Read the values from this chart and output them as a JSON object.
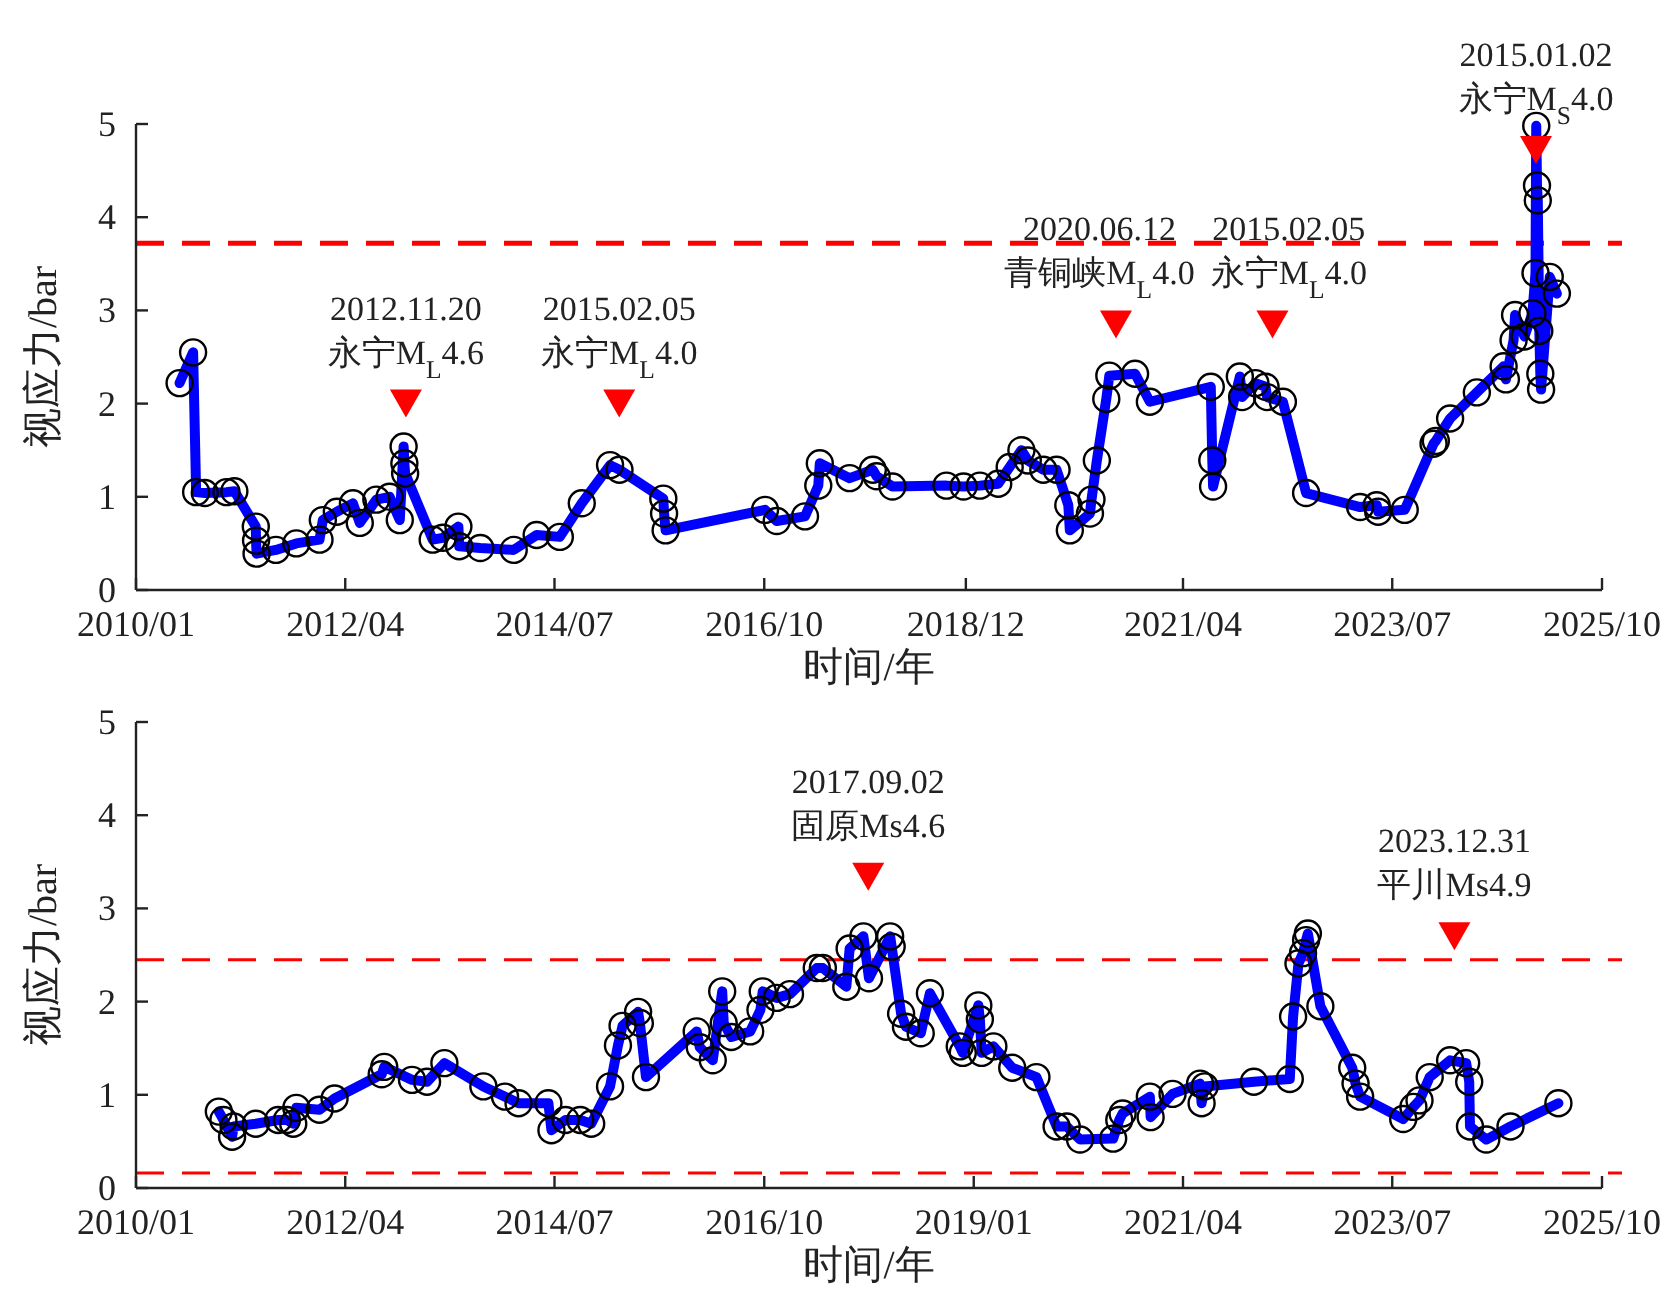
{
  "chart_data": [
    {
      "type": "line",
      "xlabel": "时间/年",
      "ylabel": "视应力/bar",
      "xlim": [
        "2010-01",
        "2025-10"
      ],
      "ylim": [
        0,
        5
      ],
      "yticks": [
        0,
        1,
        2,
        3,
        4,
        5
      ],
      "xticks": [
        {
          "value": "2010-01",
          "label": "2010/01"
        },
        {
          "value": "2012-04",
          "label": "2012/04"
        },
        {
          "value": "2014-07",
          "label": "2014/07"
        },
        {
          "value": "2016-10",
          "label": "2016/10"
        },
        {
          "value": "2018-12",
          "label": "2018/12"
        },
        {
          "value": "2021-04",
          "label": "2021/04"
        },
        {
          "value": "2023-07",
          "label": "2023/07"
        },
        {
          "value": "2025-10",
          "label": "2025/10"
        }
      ],
      "ref_lines": [
        {
          "axis": "y",
          "value": 3.72,
          "color": "#ff0000",
          "line_style": "dashed"
        }
      ],
      "annotations": [
        {
          "text": "2012.11.20\n永宁M$_{L}$4.6",
          "x": "2012-11-25",
          "y": 2.0
        },
        {
          "text": "2015.02.05\n永宁M$_{L}$4.0",
          "x": "2015-03-12",
          "y": 2.0
        },
        {
          "text": "2020.06.12\n青铜峡M$_{L}$4.0",
          "x": "2020-07-12",
          "y": 2.85
        },
        {
          "text": "2015.02.05\n永宁M$_{L}$4.0",
          "x": "2022-03-18",
          "y": 2.85
        },
        {
          "text": "2015.01.02\n永宁M$_{S}$4.0",
          "x": "2025-01-15",
          "y": 4.72
        }
      ],
      "series": [
        {
          "type": "line",
          "color": "#0000ff",
          "marker": "circle",
          "line_style": "solid",
          "x": [
            "2010-06-21",
            "2010-08-13",
            "2010-08-25",
            "2010-09-28",
            "2010-12-22",
            "2011-01-22",
            "2011-04-16",
            "2011-04-17",
            "2011-04-19",
            "2011-07-04",
            "2011-09-22",
            "2011-12-22",
            "2012-01-04",
            "2012-02-28",
            "2012-05-01",
            "2012-05-28",
            "2012-08-01",
            "2012-09-22",
            "2012-11-01",
            "2012-11-16",
            "2012-11-19",
            "2012-11-22",
            "2013-03-10",
            "2013-04-19",
            "2013-06-19",
            "2013-06-22",
            "2013-09-13",
            "2014-01-22",
            "2014-04-22",
            "2014-07-22",
            "2014-10-16",
            "2015-02-04",
            "2015-03-13",
            "2015-09-01",
            "2015-09-04",
            "2015-09-10",
            "2016-10-04",
            "2016-11-19",
            "2017-03-10",
            "2017-05-01",
            "2017-05-07",
            "2017-09-01",
            "2017-12-01",
            "2017-12-16",
            "2018-02-16",
            "2018-09-16",
            "2018-11-22",
            "2019-01-25",
            "2019-04-07",
            "2019-05-22",
            "2019-07-07",
            "2019-08-01",
            "2019-10-01",
            "2019-11-22",
            "2020-01-07",
            "2020-01-13",
            "2020-04-01",
            "2020-04-07",
            "2020-04-28",
            "2020-06-04",
            "2020-06-16",
            "2020-09-25",
            "2020-11-22",
            "2021-07-19",
            "2021-07-25",
            "2021-07-28",
            "2021-11-10",
            "2021-11-19",
            "2022-01-10",
            "2022-02-19",
            "2022-02-25",
            "2022-04-28",
            "2022-07-28",
            "2023-02-25",
            "2023-05-01",
            "2023-05-07",
            "2023-08-19",
            "2023-12-10",
            "2023-12-19",
            "2024-02-13",
            "2024-05-28",
            "2024-09-10",
            "2024-09-19",
            "2024-10-19",
            "2024-10-25",
            "2024-12-01",
            "2025-01-01",
            "2025-01-13",
            "2025-01-16",
            "2025-01-19",
            "2025-01-22",
            "2025-01-28",
            "2025-02-01",
            "2025-02-04",
            "2025-03-10",
            "2025-04-07"
          ],
          "values": [
            2.22,
            2.55,
            1.05,
            1.04,
            1.05,
            1.06,
            0.68,
            0.53,
            0.39,
            0.43,
            0.5,
            0.54,
            0.75,
            0.84,
            0.93,
            0.72,
            0.97,
            1.0,
            0.75,
            1.54,
            1.36,
            1.25,
            0.54,
            0.56,
            0.68,
            0.47,
            0.45,
            0.43,
            0.59,
            0.57,
            0.93,
            1.34,
            1.29,
            0.98,
            0.82,
            0.64,
            0.86,
            0.74,
            0.79,
            1.12,
            1.36,
            1.2,
            1.29,
            1.22,
            1.11,
            1.12,
            1.11,
            1.12,
            1.14,
            1.32,
            1.5,
            1.39,
            1.29,
            1.29,
            0.91,
            0.64,
            0.82,
            0.97,
            1.39,
            2.05,
            2.3,
            2.32,
            2.02,
            2.18,
            1.39,
            1.11,
            2.29,
            2.07,
            2.22,
            2.18,
            2.07,
            2.02,
            1.04,
            0.89,
            0.91,
            0.84,
            0.86,
            1.57,
            1.6,
            1.84,
            2.12,
            2.4,
            2.26,
            2.68,
            2.95,
            2.72,
            2.97,
            3.4,
            4.98,
            4.34,
            4.18,
            2.78,
            2.32,
            2.15,
            3.36,
            3.18
          ]
        },
        {
          "type": "scatter",
          "color": "#ff0000",
          "marker": "triangle",
          "x": [
            "2012-11-25",
            "2015-03-12",
            "2020-07-12",
            "2022-03-18",
            "2025-01-15"
          ],
          "values": [
            2.0,
            2.0,
            2.85,
            2.85,
            4.72
          ]
        }
      ]
    },
    {
      "type": "line",
      "xlabel": "时间/年",
      "ylabel": "视应力/bar",
      "xlim": [
        "2010-01",
        "2025-10"
      ],
      "ylim": [
        0,
        5
      ],
      "yticks": [
        0,
        1,
        2,
        3,
        4,
        5
      ],
      "xticks": [
        {
          "value": "2010-01",
          "label": "2010/01"
        },
        {
          "value": "2012-04",
          "label": "2012/04"
        },
        {
          "value": "2014-07",
          "label": "2014/07"
        },
        {
          "value": "2016-10",
          "label": "2016/10"
        },
        {
          "value": "2019-01",
          "label": "2019/01"
        },
        {
          "value": "2021-04",
          "label": "2021/04"
        },
        {
          "value": "2023-07",
          "label": "2023/07"
        },
        {
          "value": "2025-10",
          "label": "2025/10"
        }
      ],
      "ref_lines": [
        {
          "axis": "y",
          "value": 2.45,
          "color": "#ff0000",
          "line_style": "dashed"
        },
        {
          "axis": "y",
          "value": 0.16,
          "color": "#ff0000",
          "line_style": "dashed"
        }
      ],
      "annotations": [
        {
          "text": "2017.09.02\n固原Ms4.6",
          "x": "2017-11-13",
          "y": 3.34
        },
        {
          "text": "2023.12.31\n平川Ms4.9",
          "x": "2024-03-01",
          "y": 2.7
        }
      ],
      "series": [
        {
          "type": "line",
          "color": "#0000ff",
          "marker": "circle",
          "line_style": "solid",
          "x": [
            "2010-11-22",
            "2010-12-10",
            "2011-01-13",
            "2011-01-19",
            "2011-04-16",
            "2011-07-13",
            "2011-08-16",
            "2011-09-10",
            "2011-09-22",
            "2011-12-22",
            "2012-02-19",
            "2012-08-22",
            "2012-09-01",
            "2012-12-19",
            "2013-02-16",
            "2013-04-25",
            "2013-09-25",
            "2013-12-19",
            "2014-02-10",
            "2014-06-07",
            "2014-06-19",
            "2014-08-13",
            "2014-10-10",
            "2014-11-22",
            "2015-02-04",
            "2015-03-07",
            "2015-03-25",
            "2015-05-25",
            "2015-06-01",
            "2015-06-25",
            "2016-01-10",
            "2016-01-22",
            "2016-03-13",
            "2016-04-19",
            "2016-04-25",
            "2016-05-25",
            "2016-08-07",
            "2016-09-16",
            "2016-09-25",
            "2016-11-19",
            "2017-01-10",
            "2017-04-25",
            "2017-05-19",
            "2017-08-19",
            "2017-09-01",
            "2017-10-25",
            "2017-11-16",
            "2018-02-07",
            "2018-02-13",
            "2018-03-22",
            "2018-04-10",
            "2018-06-07",
            "2018-07-13",
            "2018-11-07",
            "2018-11-19",
            "2019-01-19",
            "2019-01-25",
            "2019-02-01",
            "2019-03-19",
            "2019-06-01",
            "2019-09-04",
            "2019-11-22",
            "2020-01-01",
            "2020-02-22",
            "2020-07-01",
            "2020-07-25",
            "2020-08-07",
            "2020-11-22",
            "2020-11-25",
            "2021-02-19",
            "2021-06-07",
            "2021-06-13",
            "2021-06-25",
            "2022-01-04",
            "2022-05-25",
            "2022-06-07",
            "2022-06-28",
            "2022-07-16",
            "2022-07-28",
            "2022-08-04",
            "2022-09-22",
            "2023-01-25",
            "2023-02-07",
            "2023-02-25",
            "2023-08-13",
            "2023-09-22",
            "2023-10-16",
            "2023-11-25",
            "2024-02-13",
            "2024-04-16",
            "2024-04-28",
            "2024-05-01",
            "2024-07-04",
            "2024-10-07",
            "2025-04-13"
          ],
          "values": [
            0.82,
            0.73,
            0.55,
            0.66,
            0.69,
            0.73,
            0.73,
            0.69,
            0.86,
            0.84,
            0.96,
            1.22,
            1.3,
            1.16,
            1.14,
            1.34,
            1.09,
            0.98,
            0.91,
            0.91,
            0.62,
            0.73,
            0.73,
            0.69,
            1.09,
            1.53,
            1.74,
            1.89,
            1.77,
            1.19,
            1.68,
            1.51,
            1.37,
            2.11,
            1.77,
            1.62,
            1.68,
            1.91,
            2.11,
            2.04,
            2.08,
            2.36,
            2.36,
            2.16,
            2.57,
            2.7,
            2.25,
            2.7,
            2.59,
            1.87,
            1.73,
            1.66,
            2.09,
            1.52,
            1.45,
            1.96,
            1.81,
            1.45,
            1.52,
            1.29,
            1.19,
            0.66,
            0.66,
            0.52,
            0.53,
            0.73,
            0.8,
            0.98,
            0.76,
            1.01,
            1.12,
            0.91,
            1.09,
            1.14,
            1.17,
            1.84,
            2.41,
            2.52,
            2.66,
            2.73,
            1.95,
            1.29,
            1.12,
            0.98,
            0.74,
            0.87,
            0.94,
            1.19,
            1.37,
            1.34,
            1.14,
            0.66,
            0.52,
            0.66,
            0.91
          ]
        },
        {
          "type": "scatter",
          "color": "#ff0000",
          "marker": "triangle",
          "x": [
            "2017-11-13",
            "2024-03-01"
          ],
          "values": [
            3.34,
            2.7
          ]
        }
      ]
    }
  ]
}
